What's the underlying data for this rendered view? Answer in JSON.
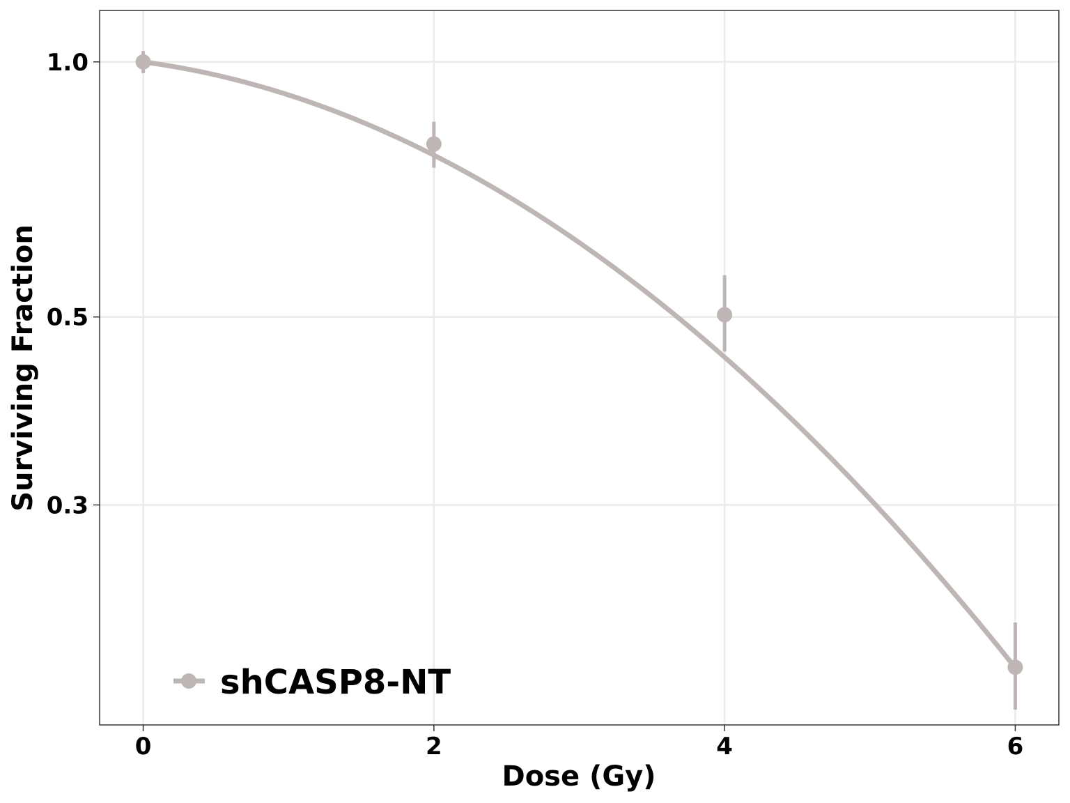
{
  "chart_data": {
    "type": "line",
    "xlabel": "Dose (Gy)",
    "ylabel": "Surviving Fraction",
    "y_scale": "log",
    "xlim": [
      -0.3,
      6.3
    ],
    "ylim": [
      0.165,
      1.15
    ],
    "x_ticks": [
      0,
      2,
      4,
      6
    ],
    "x_tick_labels": [
      "0",
      "2",
      "4",
      "6"
    ],
    "y_ticks": [
      0.3,
      0.5,
      1.0
    ],
    "y_tick_labels": [
      "0.3",
      "0.5",
      "1.0"
    ],
    "grid": true,
    "legend_position": "bottom-left",
    "series": [
      {
        "name": "shCASP8-NT",
        "color": "#bdb6b4",
        "points": [
          {
            "x": 0,
            "y": 1.0,
            "ymin": 0.97,
            "ymax": 1.03
          },
          {
            "x": 2,
            "y": 0.8,
            "ymin": 0.75,
            "ymax": 0.85
          },
          {
            "x": 4,
            "y": 0.503,
            "ymin": 0.455,
            "ymax": 0.56
          },
          {
            "x": 6,
            "y": 0.193,
            "ymin": 0.172,
            "ymax": 0.218
          }
        ],
        "fit": {
          "model": "linear-quadratic",
          "alpha": 0.053,
          "beta": 0.0369
        }
      }
    ]
  }
}
